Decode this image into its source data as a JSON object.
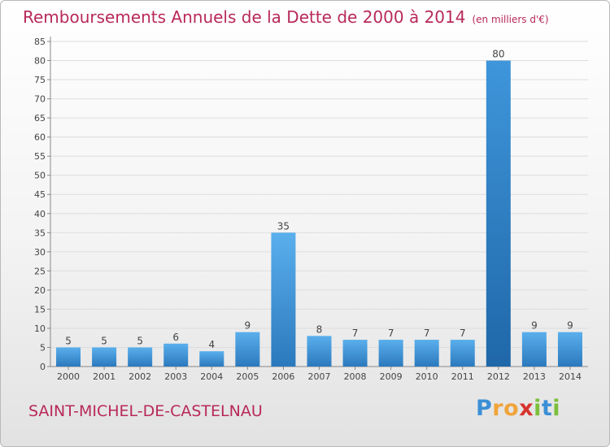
{
  "header": {
    "title": "Remboursements Annuels de la Dette de 2000 à 2014",
    "unit": "(en milliers d'€)"
  },
  "footer": {
    "commune": "SAINT-MICHEL-DE-CASTELNAU",
    "logo_letters": [
      "P",
      "r",
      "o",
      "x",
      "i",
      "t",
      "i"
    ],
    "logo_colors": [
      "#3b8fd6",
      "#f0a43a",
      "#f0a43a",
      "#d7332d",
      "#7bbf3a",
      "#3b8fd6",
      "#7bbf3a"
    ]
  },
  "chart_data": {
    "type": "bar",
    "title": "Remboursements Annuels de la Dette de 2000 à 2014",
    "categories": [
      "2000",
      "2001",
      "2002",
      "2003",
      "2004",
      "2005",
      "2006",
      "2007",
      "2008",
      "2009",
      "2010",
      "2011",
      "2012",
      "2013",
      "2014"
    ],
    "values": [
      5,
      5,
      5,
      6,
      4,
      9,
      35,
      8,
      7,
      7,
      7,
      7,
      80,
      9,
      9
    ],
    "ylim": [
      0,
      85
    ],
    "yticks": [
      0,
      5,
      10,
      15,
      20,
      25,
      30,
      35,
      40,
      45,
      50,
      55,
      60,
      65,
      70,
      75,
      80,
      85
    ],
    "grid": true,
    "bar_color": "#4da3e6",
    "bar_color_dark": "#2c7cc0"
  }
}
